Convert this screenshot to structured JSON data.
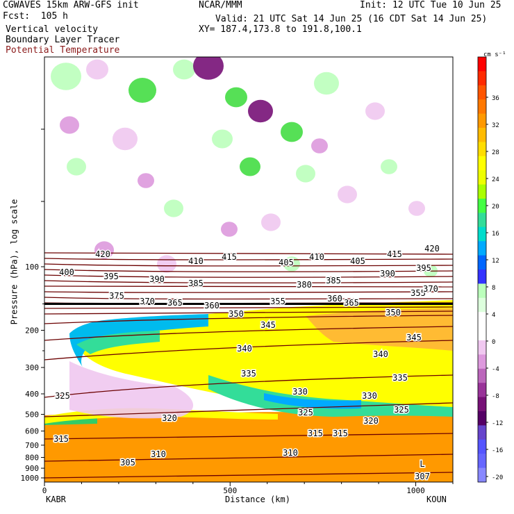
{
  "header": {
    "model": "CGWAVES 15km ARW-GFS init",
    "org": "NCAR/MMM",
    "init": "Init: 12 UTC Tue 10 Jun 25",
    "fcst": "Fcst:  105 h",
    "valid": "Valid: 21 UTC Sat 14 Jun 25 (16 CDT Sat 14 Jun 25)",
    "field1": "Vertical velocity",
    "xy": "XY= 187.4,173.8 to 191.8,100.1",
    "field2": "Boundary Layer Tracer",
    "field3": "Potential Temperature",
    "field3_color": "#8b1a1a"
  },
  "chart_data": {
    "type": "heatmap",
    "ylabel": "Pressure (hPa), log scale",
    "xlabel": "Distance (km)",
    "x_ticks": [
      0,
      500,
      1000
    ],
    "xlim": [
      0,
      1100
    ],
    "y_ticks": [
      100,
      200,
      300,
      400,
      500,
      600,
      700,
      800,
      900,
      1000
    ],
    "y_scale": "log",
    "start_label": "KABR",
    "end_label": "KOUN",
    "colorbar": {
      "unit": "cm s⁻¹",
      "tick_labels": [
        36,
        32,
        28,
        24,
        20,
        16,
        12,
        8,
        4,
        0,
        -4,
        -8,
        -12,
        -16,
        -20
      ],
      "colors": [
        "#ff0000",
        "#ff2a00",
        "#ff5500",
        "#ff7800",
        "#ff9900",
        "#ffbb00",
        "#ffdd00",
        "#ffff00",
        "#eeff00",
        "#aaff00",
        "#44ff44",
        "#33dd99",
        "#00ddcc",
        "#00aaff",
        "#0066ff",
        "#3333ff",
        "#bbffbb",
        "#ddffdd",
        "#ffffff",
        "#ffffff",
        "#f0c8f0",
        "#dd99dd",
        "#bb66bb",
        "#993399",
        "#771177",
        "#550066",
        "#6644cc",
        "#5555ff",
        "#6666ff",
        "#8888ff"
      ]
    },
    "theta_labels": [
      "420",
      "415",
      "420",
      "410",
      "405",
      "410",
      "405",
      "415",
      "400",
      "395",
      "390",
      "385",
      "380",
      "385",
      "390",
      "395",
      "375",
      "370",
      "360",
      "365",
      "355",
      "370",
      "360",
      "355",
      "350",
      "365",
      "350",
      "345",
      "345",
      "340",
      "340",
      "335",
      "335",
      "330",
      "330",
      "325",
      "325",
      "325",
      "320",
      "320",
      "315",
      "315",
      "315",
      "310",
      "310",
      "305",
      "307",
      "L"
    ]
  }
}
